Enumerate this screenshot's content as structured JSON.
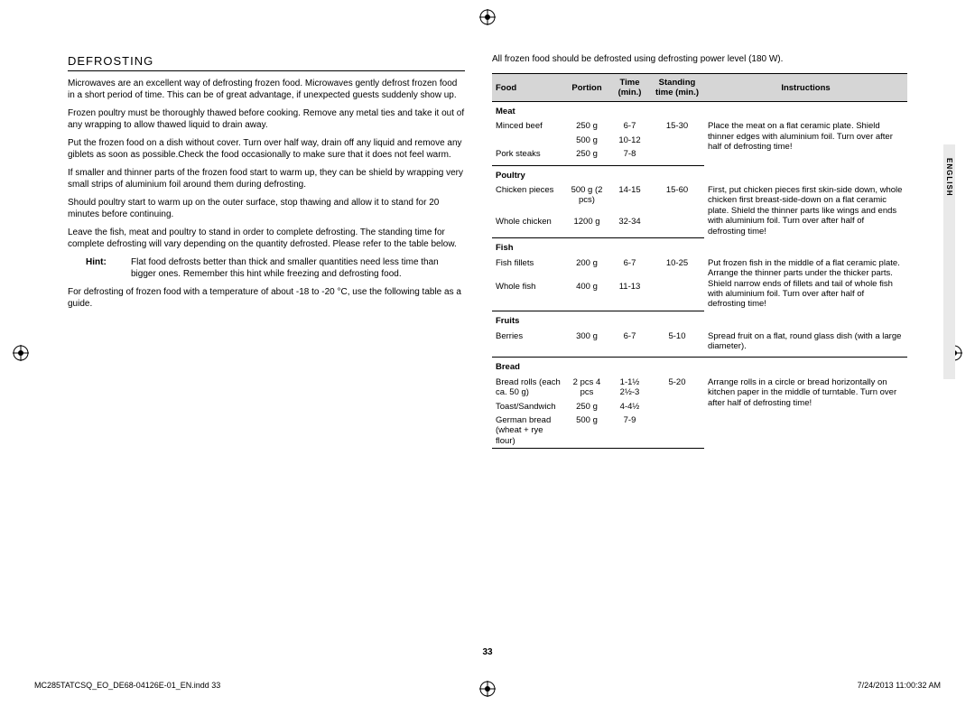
{
  "heading": "DEFROSTING",
  "paragraphs": [
    "Microwaves are an excellent way of defrosting frozen food. Microwaves gently defrost frozen food in a short period of time. This can be of great advantage, if unexpected guests suddenly show up.",
    "Frozen poultry must be thoroughly thawed before cooking. Remove any metal ties and take it out of any wrapping to allow thawed liquid to drain away.",
    "Put the frozen food on a dish without cover. Turn over half way, drain off any liquid and remove any giblets as soon as possible.Check the food occasionally to make sure that it does not feel warm.",
    "If smaller and thinner parts of the frozen food start to warm up, they can be shield by wrapping very small strips of aluminium foil around them during defrosting.",
    "Should poultry start to warm up on the outer surface, stop thawing and allow it to stand for 20 minutes before continuing.",
    "Leave the fish, meat and poultry to stand in order to complete defrosting. The standing time for complete defrosting will vary depending on the quantity defrosted. Please refer to the table below."
  ],
  "hint_label": "Hint:",
  "hint_text": "Flat food defrosts better than thick and smaller quantities need less time than bigger ones. Remember this hint while freezing and defrosting food.",
  "post_hint": "For defrosting of frozen food with a temperature of about -18 to -20 °C, use the following table as a guide.",
  "right_intro": "All frozen food should be defrosted using defrosting power level (180 W).",
  "table": {
    "headers": {
      "food": "Food",
      "portion": "Portion",
      "time": "Time (min.)",
      "standing": "Standing time (min.)",
      "instructions": "Instructions"
    },
    "sections": [
      {
        "category": "Meat",
        "rows": [
          {
            "food": "Minced beef",
            "portion": "250 g",
            "time": "6-7",
            "standing": "15-30"
          },
          {
            "food": "",
            "portion": "500 g",
            "time": "10-12",
            "standing": ""
          },
          {
            "food": "Pork steaks",
            "portion": "250 g",
            "time": "7-8",
            "standing": ""
          }
        ],
        "instructions": "Place the meat on a flat ceramic plate. Shield thinner edges with aluminium foil. Turn over after half of defrosting time!"
      },
      {
        "category": "Poultry",
        "rows": [
          {
            "food": "Chicken pieces",
            "portion": "500 g (2 pcs)",
            "time": "14-15",
            "standing": "15-60"
          },
          {
            "food": "Whole chicken",
            "portion": "1200 g",
            "time": "32-34",
            "standing": ""
          }
        ],
        "instructions": "First, put chicken pieces first skin-side down, whole chicken first breast-side-down on a flat ceramic plate. Shield the thinner parts like wings and ends with aluminium foil. Turn over after half of defrosting time!"
      },
      {
        "category": "Fish",
        "rows": [
          {
            "food": "Fish fillets",
            "portion": "200 g",
            "time": "6-7",
            "standing": "10-25"
          },
          {
            "food": "Whole fish",
            "portion": "400 g",
            "time": "11-13",
            "standing": ""
          }
        ],
        "instructions": "Put frozen fish in the middle of a flat ceramic plate. Arrange the thinner parts under the thicker parts. Shield narrow ends of fillets and tail of whole fish with aluminium foil. Turn over after half of defrosting time!"
      },
      {
        "category": "Fruits",
        "rows": [
          {
            "food": "Berries",
            "portion": "300 g",
            "time": "6-7",
            "standing": "5-10"
          }
        ],
        "instructions": "Spread fruit on a flat, round glass dish (with a large diameter)."
      },
      {
        "category": "Bread",
        "rows": [
          {
            "food": "Bread rolls (each ca. 50 g)",
            "portion": "2 pcs 4 pcs",
            "time": "1-1½ 2½-3",
            "standing": "5-20"
          },
          {
            "food": "Toast/Sandwich",
            "portion": "250 g",
            "time": "4-4½",
            "standing": ""
          },
          {
            "food": "German bread (wheat + rye flour)",
            "portion": "500 g",
            "time": "7-9",
            "standing": ""
          }
        ],
        "instructions": "Arrange rolls in a circle or bread horizontally on kitchen paper in the middle of turntable. Turn over after half of defrosting time!"
      }
    ]
  },
  "side_label": "ENGLISH",
  "page_number": "33",
  "footer_left": "MC285TATCSQ_EO_DE68-04126E-01_EN.indd   33",
  "footer_right": "7/24/2013   11:00:32 AM"
}
